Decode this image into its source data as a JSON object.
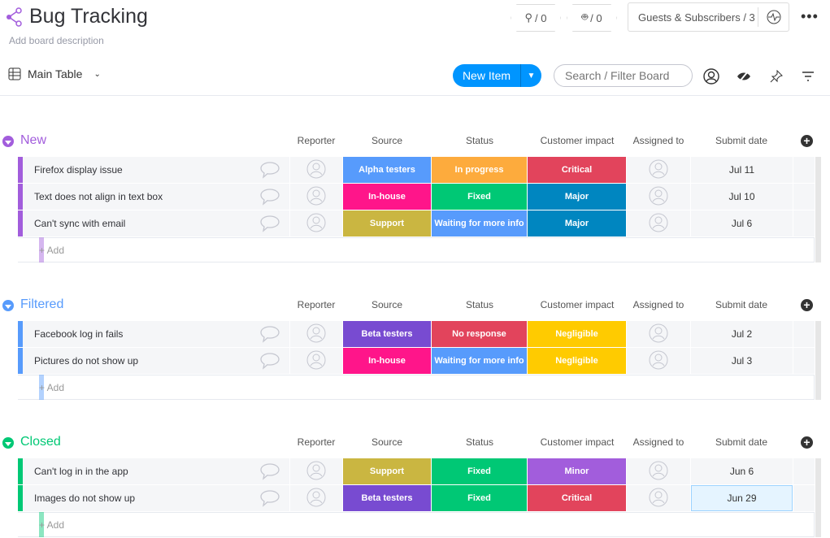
{
  "header": {
    "title": "Bug Tracking",
    "description": "Add board description",
    "integrations_count": "/ 0",
    "automations_count": "/ 0",
    "guests": "Guests & Subscribers / 3",
    "more": "•••"
  },
  "toolbar": {
    "view": "Main Table",
    "new_item": "New Item",
    "search_placeholder": "Search / Filter Board"
  },
  "columns": [
    "Reporter",
    "Source",
    "Status",
    "Customer impact",
    "Assigned to",
    "Submit date"
  ],
  "add_label": "+ Add",
  "colors": {
    "purple": "#a25ddc",
    "blue": "#579bfc",
    "green": "#00c875",
    "pink": "#ff158a",
    "olive": "#cab641",
    "violet": "#784bd1",
    "orange": "#fdab3d",
    "red": "#e2445c",
    "darkblue": "#0086c0",
    "yellow": "#ffcb00"
  },
  "groups": [
    {
      "name": "New",
      "color": "#a25ddc",
      "items": [
        {
          "name": "Firefox display issue",
          "source": "Alpha testers",
          "source_color": "#579bfc",
          "status": "In progress",
          "status_color": "#fdab3d",
          "impact": "Critical",
          "impact_color": "#e2445c",
          "date": "Jul 11"
        },
        {
          "name": "Text does not align in text box",
          "source": "In-house",
          "source_color": "#ff158a",
          "status": "Fixed",
          "status_color": "#00c875",
          "impact": "Major",
          "impact_color": "#0086c0",
          "date": "Jul 10"
        },
        {
          "name": "Can't sync with email",
          "source": "Support",
          "source_color": "#cab641",
          "status": "Waiting for more info",
          "status_color": "#579bfc",
          "impact": "Major",
          "impact_color": "#0086c0",
          "date": "Jul 6"
        }
      ]
    },
    {
      "name": "Filtered",
      "color": "#579bfc",
      "items": [
        {
          "name": "Facebook log in fails",
          "source": "Beta testers",
          "source_color": "#784bd1",
          "status": "No response",
          "status_color": "#e2445c",
          "impact": "Negligible",
          "impact_color": "#ffcb00",
          "date": "Jul 2"
        },
        {
          "name": "Pictures do not show up",
          "source": "In-house",
          "source_color": "#ff158a",
          "status": "Waiting for more info",
          "status_color": "#579bfc",
          "impact": "Negligible",
          "impact_color": "#ffcb00",
          "date": "Jul 3"
        }
      ]
    },
    {
      "name": "Closed",
      "color": "#00c875",
      "items": [
        {
          "name": "Can't log in in the app",
          "source": "Support",
          "source_color": "#cab641",
          "status": "Fixed",
          "status_color": "#00c875",
          "impact": "Minor",
          "impact_color": "#a25ddc",
          "date": "Jun 6"
        },
        {
          "name": "Images do not show up",
          "source": "Beta testers",
          "source_color": "#784bd1",
          "status": "Fixed",
          "status_color": "#00c875",
          "impact": "Critical",
          "impact_color": "#e2445c",
          "date": "Jun 29",
          "selected": true
        }
      ]
    }
  ]
}
